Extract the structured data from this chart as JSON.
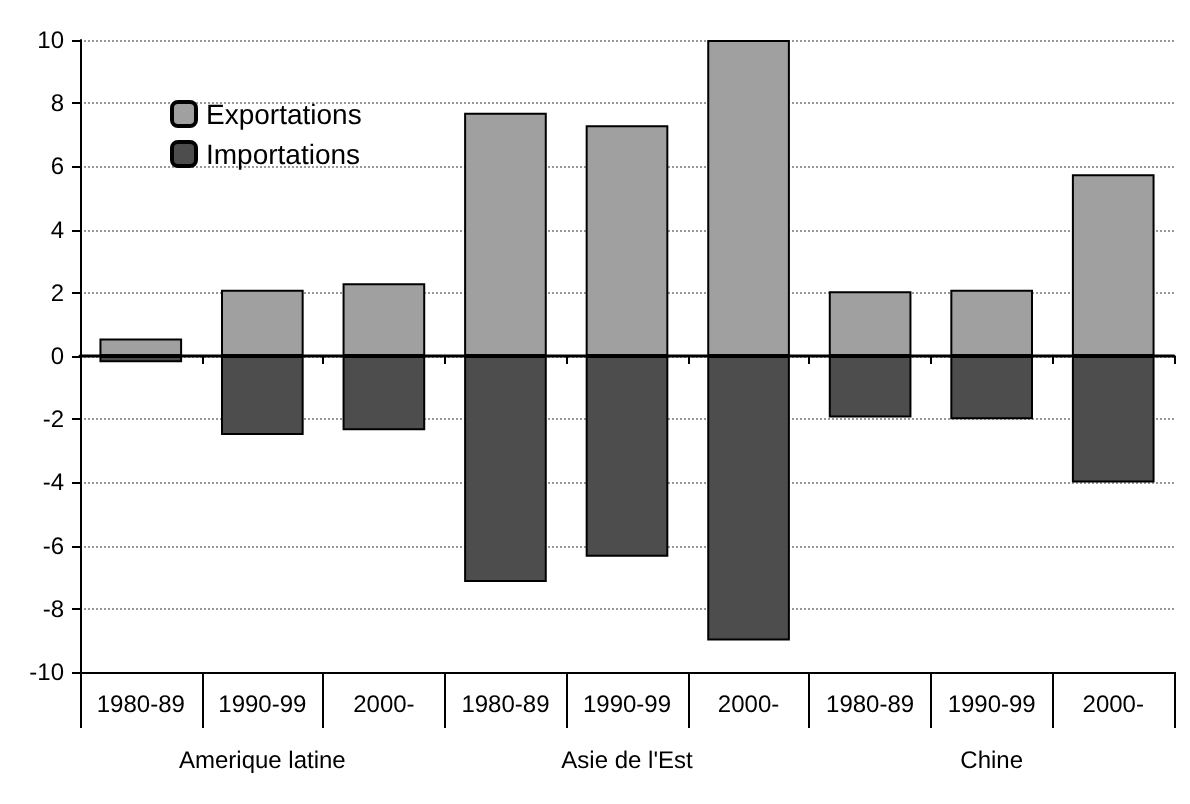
{
  "chart_data": {
    "type": "bar",
    "stacked": true,
    "categories": [
      "1980-89",
      "1990-99",
      "2000-",
      "1980-89",
      "1990-99",
      "2000-",
      "1980-89",
      "1990-99",
      "2000-"
    ],
    "series": [
      {
        "name": "Exportations",
        "color": "#a0a0a0",
        "values": [
          0.55,
          2.1,
          2.3,
          7.7,
          7.3,
          10.0,
          2.05,
          2.1,
          5.75
        ]
      },
      {
        "name": "Importations",
        "color": "#4d4d4d",
        "values": [
          -0.2,
          -2.5,
          -2.35,
          -7.15,
          -6.35,
          -9.0,
          -1.95,
          -2.0,
          -4.0
        ]
      }
    ],
    "ylim": [
      -10,
      10
    ],
    "yticks": [
      -10,
      -8,
      -6,
      -4,
      -2,
      0,
      2,
      4,
      6,
      8,
      10
    ],
    "grid": "y",
    "legend": "top left",
    "annotations": [
      "Amerique latine",
      "Asie de l'Est",
      "Chine"
    ]
  }
}
